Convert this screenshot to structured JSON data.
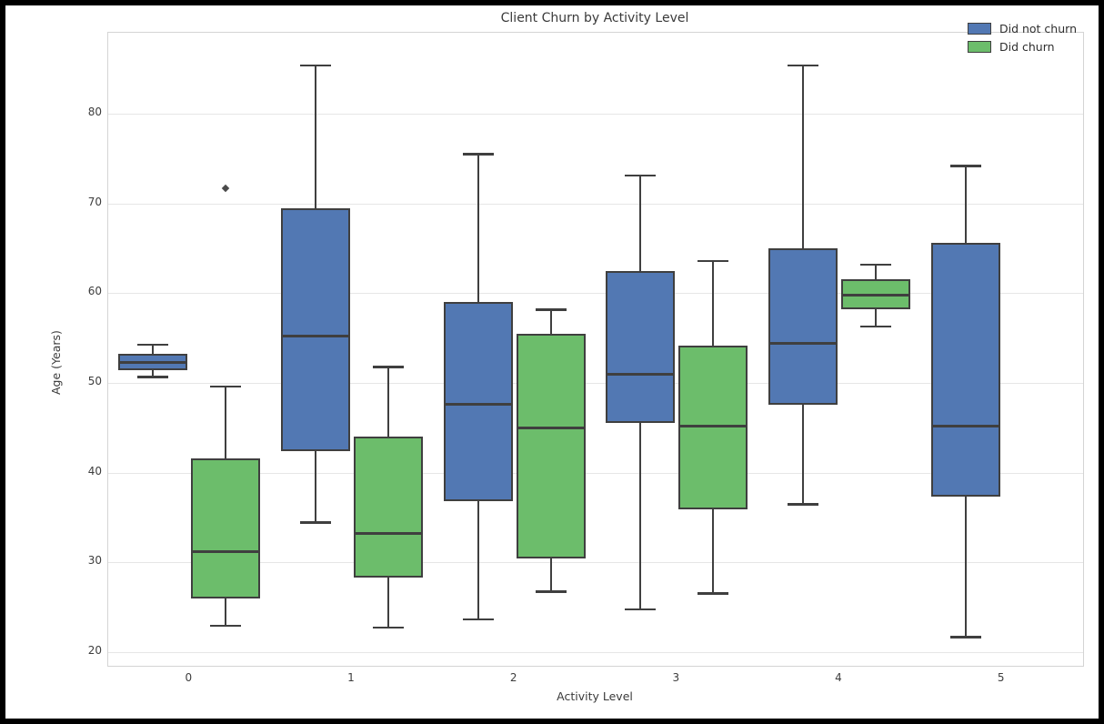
{
  "chart_data": {
    "type": "boxplot",
    "title": "Client Churn by Activity Level",
    "xlabel": "Activity Level",
    "ylabel": "Age (Years)",
    "x_tick_labels": [
      "0",
      "1",
      "2",
      "3",
      "4",
      "5"
    ],
    "y_tick_values": [
      20,
      30,
      40,
      50,
      60,
      70,
      80
    ],
    "ylim": [
      18.5,
      89.0
    ],
    "grid": "horizontal",
    "legend_position": "top-right",
    "legend": [
      {
        "label": "Did not churn",
        "color": "#5278b3"
      },
      {
        "label": "Did churn",
        "color": "#6cbd6b"
      }
    ],
    "series": [
      {
        "name": "Did not churn",
        "color": "#5278b3",
        "dodge": -40,
        "boxes": [
          {
            "level": 0,
            "whislo": 50.7,
            "q1": 51.4,
            "med": 52.3,
            "q3": 53.2,
            "whishi": 54.3,
            "fliers": []
          },
          {
            "level": 1,
            "whislo": 34.5,
            "q1": 42.4,
            "med": 55.2,
            "q3": 69.5,
            "whishi": 85.4,
            "fliers": []
          },
          {
            "level": 2,
            "whislo": 23.7,
            "q1": 36.8,
            "med": 47.6,
            "q3": 59.0,
            "whishi": 75.5,
            "fliers": []
          },
          {
            "level": 3,
            "whislo": 24.8,
            "q1": 45.5,
            "med": 51.0,
            "q3": 62.5,
            "whishi": 73.1,
            "fliers": []
          },
          {
            "level": 4,
            "whislo": 36.5,
            "q1": 47.6,
            "med": 54.4,
            "q3": 65.0,
            "whishi": 85.4,
            "fliers": []
          },
          {
            "level": 5,
            "whislo": 21.7,
            "q1": 37.3,
            "med": 45.2,
            "q3": 65.6,
            "whishi": 74.2,
            "fliers": []
          }
        ]
      },
      {
        "name": "Did churn",
        "color": "#6cbd6b",
        "dodge": 40,
        "boxes": [
          {
            "level": 0,
            "whislo": 23.0,
            "q1": 26.0,
            "med": 31.2,
            "q3": 41.6,
            "whishi": 49.6,
            "fliers": [
              71.7
            ]
          },
          {
            "level": 1,
            "whislo": 22.8,
            "q1": 28.3,
            "med": 33.2,
            "q3": 44.0,
            "whishi": 51.8,
            "fliers": []
          },
          {
            "level": 2,
            "whislo": 26.8,
            "q1": 30.5,
            "med": 45.0,
            "q3": 55.5,
            "whishi": 58.2,
            "fliers": []
          },
          {
            "level": 3,
            "whislo": 26.6,
            "q1": 35.9,
            "med": 45.2,
            "q3": 54.2,
            "whishi": 63.6,
            "fliers": []
          },
          {
            "level": 4,
            "whislo": 56.3,
            "q1": 58.2,
            "med": 59.8,
            "q3": 61.5,
            "whishi": 63.2,
            "fliers": []
          }
        ]
      }
    ],
    "style": {
      "box_edge_color": "#3f3f3f",
      "grid_color": "#e6e6e6",
      "spine_color": "#d4d4d4",
      "text_color": "#3a3a3a"
    }
  }
}
